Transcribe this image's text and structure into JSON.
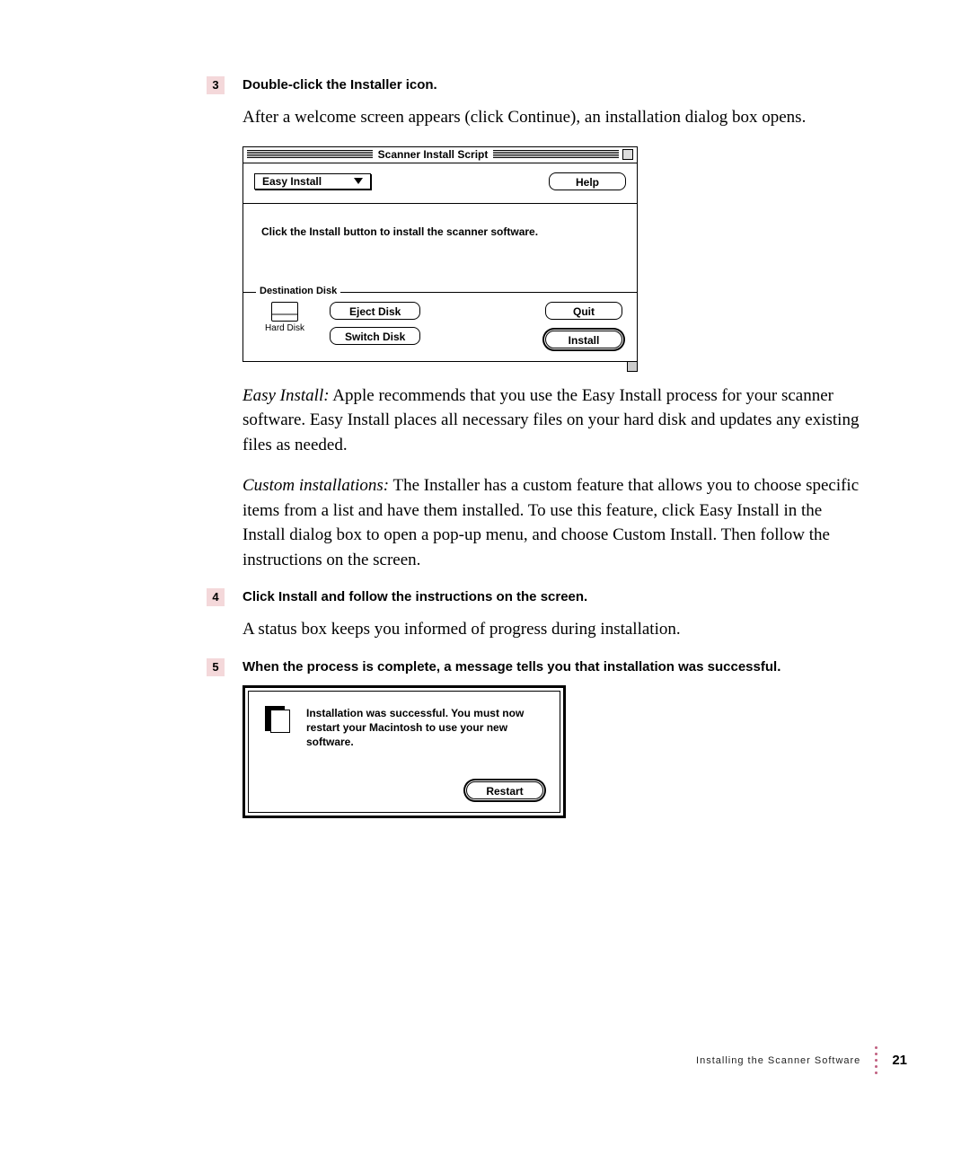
{
  "steps": {
    "s3": {
      "num": "3",
      "heading": "Double-click the Installer icon."
    },
    "s4": {
      "num": "4",
      "heading": "Click Install and follow the instructions on the screen."
    },
    "s5": {
      "num": "5",
      "heading": "When the process is complete, a message tells you that installation was successful."
    }
  },
  "para1": "After a welcome screen appears (click Continue), an installation dialog box opens.",
  "para_easy_lead": "Easy Install:",
  "para_easy_body": "  Apple recommends that you use the Easy Install process for your scanner software. Easy Install places all necessary files on your hard disk and updates any existing files as needed.",
  "para_custom_lead": "Custom installations:",
  "para_custom_body": "  The Installer has a custom feature that allows you to choose specific items from a list and have them installed. To use this feature, click Easy Install in the Install dialog box to open a pop-up menu, and choose Custom Install. Then follow the instructions on the screen.",
  "para_status": "A status box keeps you informed of progress during installation.",
  "installer": {
    "title": "Scanner Install Script",
    "popup_label": "Easy Install",
    "help_label": "Help",
    "instruction": "Click the Install button to install the scanner software.",
    "dest_label": "Destination Disk",
    "disk_name": "Hard Disk",
    "eject_label": "Eject Disk",
    "switch_label": "Switch Disk",
    "quit_label": "Quit",
    "install_label": "Install"
  },
  "dialog2": {
    "message": "Installation was successful.  You must now restart your Macintosh to use your new software.",
    "restart_label": "Restart"
  },
  "footer": {
    "title": "Installing the Scanner Software",
    "page": "21"
  },
  "colors": {
    "step_bg": "#f4d8da",
    "dot": "#c06080"
  }
}
